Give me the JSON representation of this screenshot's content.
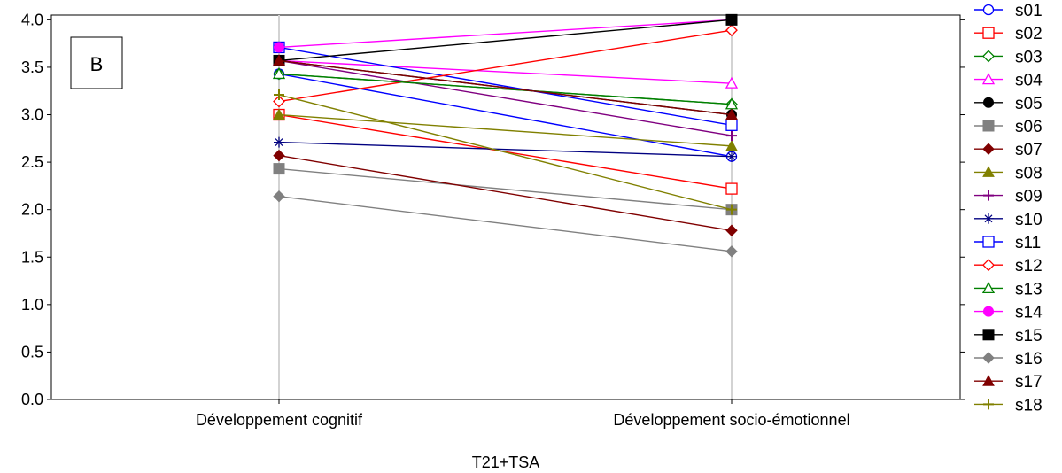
{
  "chart_data": {
    "type": "line",
    "panel_label": "B",
    "xlabel": "T21+TSA",
    "ylabel": "",
    "categories": [
      "Développement cognitif",
      "Développement socio-émotionnel"
    ],
    "ylim": [
      0.0,
      4.05
    ],
    "yticks": [
      "0.0",
      "0.5",
      "1.0",
      "1.5",
      "2.0",
      "2.5",
      "3.0",
      "3.5",
      "4.0"
    ],
    "grid": "vertical",
    "legend_position": "right",
    "series": [
      {
        "name": "s01",
        "values": [
          3.43,
          2.56
        ],
        "color": "#0000ff",
        "marker": "circle-open"
      },
      {
        "name": "s02",
        "values": [
          3.0,
          2.22
        ],
        "color": "#ff0000",
        "marker": "square-open"
      },
      {
        "name": "s03",
        "values": [
          3.43,
          3.11
        ],
        "color": "#008000",
        "marker": "diamond-open"
      },
      {
        "name": "s04",
        "values": [
          3.57,
          3.33
        ],
        "color": "#ff00ff",
        "marker": "triangle-open"
      },
      {
        "name": "s05",
        "values": [
          3.57,
          3.0
        ],
        "color": "#000000",
        "marker": "circle"
      },
      {
        "name": "s06",
        "values": [
          2.43,
          2.0
        ],
        "color": "#808080",
        "marker": "square"
      },
      {
        "name": "s07",
        "values": [
          2.57,
          1.78
        ],
        "color": "#800000",
        "marker": "diamond"
      },
      {
        "name": "s08",
        "values": [
          3.0,
          2.67
        ],
        "color": "#808000",
        "marker": "triangle"
      },
      {
        "name": "s09",
        "values": [
          3.57,
          2.78
        ],
        "color": "#800080",
        "marker": "plus"
      },
      {
        "name": "s10",
        "values": [
          2.71,
          2.56
        ],
        "color": "#000080",
        "marker": "star"
      },
      {
        "name": "s11",
        "values": [
          3.71,
          2.89
        ],
        "color": "#0000ff",
        "marker": "square-open"
      },
      {
        "name": "s12",
        "values": [
          3.14,
          3.89
        ],
        "color": "#ff0000",
        "marker": "diamond-open"
      },
      {
        "name": "s13",
        "values": [
          3.43,
          3.11
        ],
        "color": "#008000",
        "marker": "triangle-open"
      },
      {
        "name": "s14",
        "values": [
          3.71,
          4.0
        ],
        "color": "#ff00ff",
        "marker": "circle"
      },
      {
        "name": "s15",
        "values": [
          3.57,
          4.0
        ],
        "color": "#000000",
        "marker": "square"
      },
      {
        "name": "s16",
        "values": [
          2.14,
          1.56
        ],
        "color": "#808080",
        "marker": "diamond"
      },
      {
        "name": "s17",
        "values": [
          3.57,
          3.0
        ],
        "color": "#800000",
        "marker": "triangle"
      },
      {
        "name": "s18",
        "values": [
          3.21,
          2.0
        ],
        "color": "#808000",
        "marker": "plus"
      }
    ]
  }
}
